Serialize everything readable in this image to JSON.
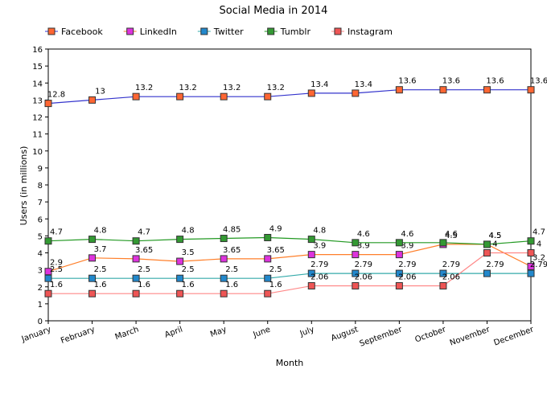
{
  "chart_data": {
    "type": "line",
    "title": "Social Media in 2014",
    "xlabel": "Month",
    "ylabel": "Users (in millions)",
    "ylim": [
      0,
      16
    ],
    "yticks": [
      0,
      1,
      2,
      3,
      4,
      5,
      6,
      7,
      8,
      9,
      10,
      11,
      12,
      13,
      14,
      15,
      16
    ],
    "grid": false,
    "legend_position": "top-left",
    "categories": [
      "January",
      "February",
      "March",
      "April",
      "May",
      "June",
      "July",
      "August",
      "September",
      "October",
      "November",
      "December"
    ],
    "series": [
      {
        "name": "Facebook",
        "color": "#3333cc",
        "marker_color": "#ff6633",
        "values": [
          12.8,
          13,
          13.2,
          13.2,
          13.2,
          13.2,
          13.4,
          13.4,
          13.6,
          13.6,
          13.6,
          13.6
        ]
      },
      {
        "name": "LinkedIn",
        "color": "#ff7f2a",
        "marker_color": "#dd33dd",
        "values": [
          2.9,
          3.7,
          3.65,
          3.5,
          3.65,
          3.65,
          3.9,
          3.9,
          3.9,
          4.5,
          4.5,
          3.2
        ]
      },
      {
        "name": "Twitter",
        "color": "#33aaaa",
        "marker_color": "#2288cc",
        "values": [
          2.5,
          2.5,
          2.5,
          2.5,
          2.5,
          2.5,
          2.79,
          2.79,
          2.79,
          2.79,
          2.79,
          2.79
        ]
      },
      {
        "name": "Tumblr",
        "color": "#229922",
        "marker_color": "#339933",
        "values": [
          4.7,
          4.8,
          4.7,
          4.8,
          4.85,
          4.9,
          4.8,
          4.6,
          4.6,
          4.6,
          4.5,
          4.7
        ]
      },
      {
        "name": "Instagram",
        "color": "#ff8888",
        "marker_color": "#ee5555",
        "values": [
          1.6,
          1.6,
          1.6,
          1.6,
          1.6,
          1.6,
          2.06,
          2.06,
          2.06,
          2.06,
          4,
          4
        ]
      }
    ]
  }
}
